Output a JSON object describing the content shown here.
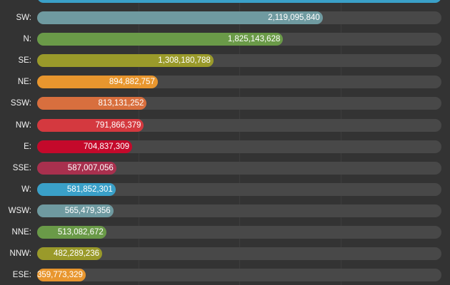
{
  "chart_data": {
    "type": "bar",
    "orientation": "horizontal",
    "grid": true,
    "xlim": [
      0,
      3000000000
    ],
    "categories": [
      "SW:",
      "N:",
      "SE:",
      "NE:",
      "SSW:",
      "NW:",
      "E:",
      "SSE:",
      "W:",
      "WSW:",
      "NNE:",
      "NNW:",
      "ESE:"
    ],
    "values": [
      2119095840,
      1825143628,
      1308180788,
      894882757,
      813131252,
      791866379,
      704837309,
      587007056,
      581852301,
      565479356,
      513082672,
      482289236,
      359773329
    ],
    "value_labels": [
      "2,119,095,840",
      "1,825,143,628",
      "1,308,180,788",
      "894,882,757",
      "813,131,252",
      "791,866,379",
      "704,837,309",
      "587,007,056",
      "581,852,301",
      "565,479,356",
      "513,082,672",
      "482,289,236",
      "359,773,329"
    ],
    "colors": [
      "#6f9aa0",
      "#6a9a48",
      "#9a9a2a",
      "#e8962e",
      "#d86f3e",
      "#d4393f",
      "#c4092b",
      "#a8304e",
      "#3aa0c8",
      "#6f9aa0",
      "#6a9a48",
      "#9a9a2a",
      "#e8962e"
    ],
    "partial_top_bar_color": "#3aa0c8"
  }
}
